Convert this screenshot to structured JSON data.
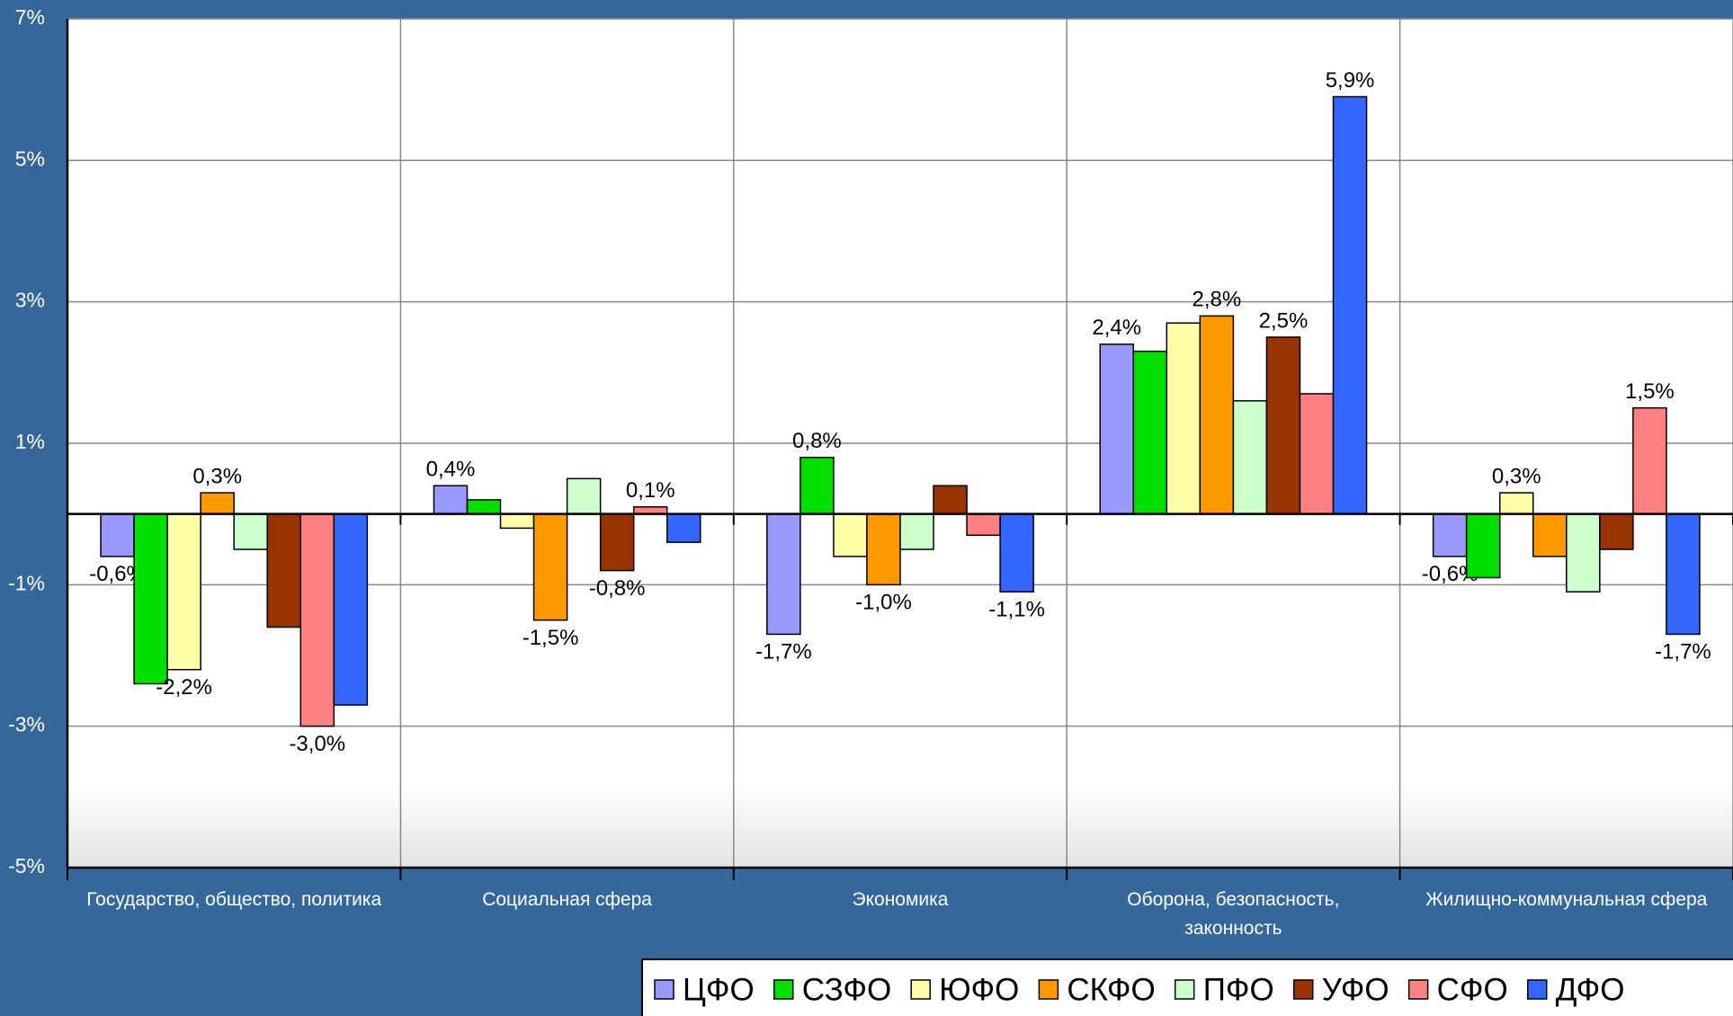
{
  "chart_data": {
    "type": "bar",
    "categories": [
      "Государство, общество, политика",
      "Социальная сфера",
      "Экономика",
      "Оборона, безопасность, законность",
      "Жилищно-коммунальная сфера"
    ],
    "series": [
      {
        "name": "ЦФО",
        "color": "#9999ff",
        "values": [
          -0.6,
          0.4,
          -1.7,
          2.4,
          -0.6
        ],
        "value_labels": [
          "-0,6%",
          "0,4%",
          "-1,7%",
          "2,4%",
          "-0,6%"
        ]
      },
      {
        "name": "СЗФО",
        "color": "#00e000",
        "values": [
          -2.4,
          0.2,
          0.8,
          2.3,
          -0.9
        ],
        "value_labels": [
          null,
          null,
          "0,8%",
          null,
          null
        ]
      },
      {
        "name": "ЮФО",
        "color": "#ffffa8",
        "values": [
          -2.2,
          -0.2,
          -0.6,
          2.7,
          0.3
        ],
        "value_labels": [
          "-2,2%",
          null,
          null,
          null,
          "0,3%"
        ]
      },
      {
        "name": "СКФО",
        "color": "#ff9900",
        "values": [
          0.3,
          -1.5,
          -1.0,
          2.8,
          -0.6
        ],
        "value_labels": [
          "0,3%",
          "-1,5%",
          "-1,0%",
          "2,8%",
          null
        ]
      },
      {
        "name": "ПФО",
        "color": "#ccffcc",
        "values": [
          -0.5,
          0.5,
          -0.5,
          1.6,
          -1.1
        ],
        "value_labels": [
          null,
          null,
          null,
          null,
          null
        ]
      },
      {
        "name": "УФО",
        "color": "#993300",
        "values": [
          -1.6,
          -0.8,
          0.4,
          2.5,
          -0.5
        ],
        "value_labels": [
          null,
          "-0,8%",
          null,
          "2,5%",
          null
        ]
      },
      {
        "name": "СФО",
        "color": "#ff8080",
        "values": [
          -3.0,
          0.1,
          -0.3,
          1.7,
          1.5
        ],
        "value_labels": [
          "-3,0%",
          "0,1%",
          null,
          null,
          "1,5%"
        ]
      },
      {
        "name": "ДФО",
        "color": "#3366ff",
        "values": [
          -2.7,
          -0.4,
          -1.1,
          5.9,
          -1.7
        ],
        "value_labels": [
          null,
          null,
          "-1,1%",
          "5,9%",
          "-1,7%"
        ]
      }
    ],
    "ylim": [
      -5,
      7
    ],
    "yticks": [
      {
        "value": -5,
        "label": "-5%"
      },
      {
        "value": -3,
        "label": "-3%"
      },
      {
        "value": -1,
        "label": "-1%"
      },
      {
        "value": 1,
        "label": "1%"
      },
      {
        "value": 3,
        "label": "3%"
      },
      {
        "value": 5,
        "label": "5%"
      },
      {
        "value": 7,
        "label": "7%"
      }
    ],
    "grid": true,
    "legend": "bottom"
  }
}
